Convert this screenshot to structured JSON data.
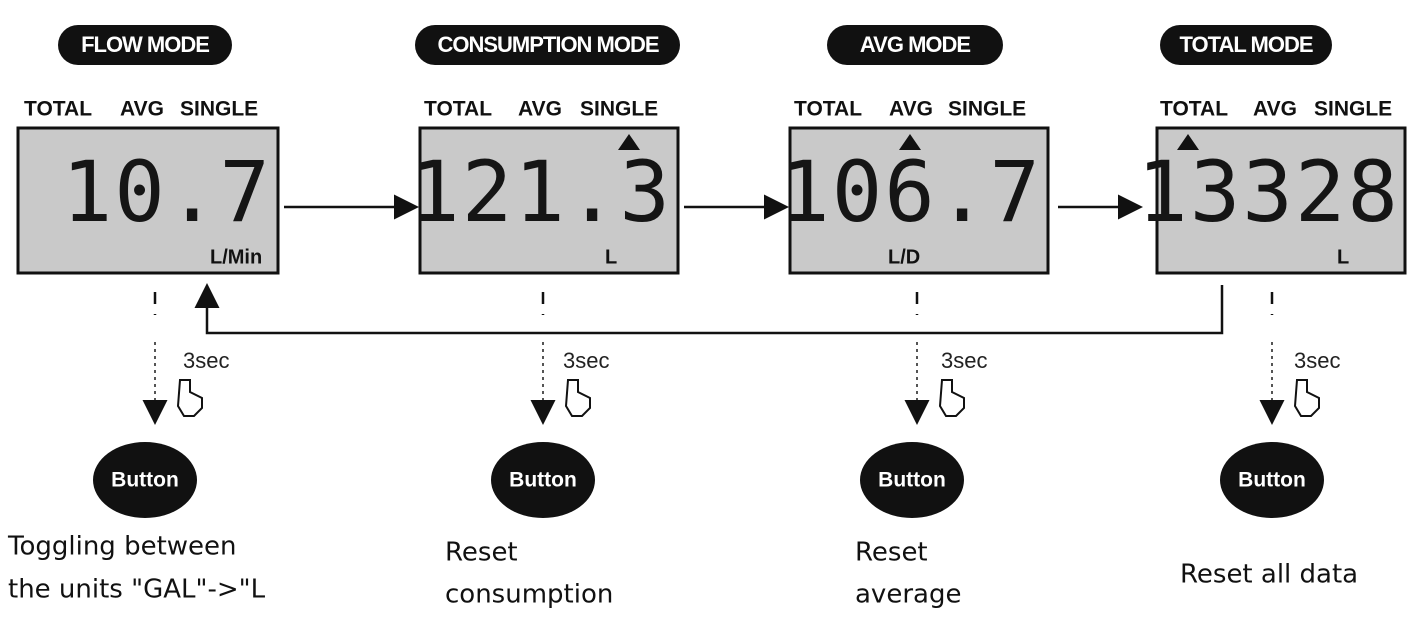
{
  "modes": [
    {
      "title": "FLOW MODE",
      "indicators": [
        "TOTAL",
        "AVG",
        "SINGLE"
      ],
      "display": "10.7",
      "unit": "L/Min",
      "hold": "3sec",
      "button": "Button",
      "action": [
        "Toggling between",
        "the units \"GAL\"->\"L"
      ]
    },
    {
      "title": "CONSUMPTION MODE",
      "indicators": [
        "TOTAL",
        "AVG",
        "SINGLE"
      ],
      "display": "121.3",
      "unit": "L",
      "hold": "3sec",
      "button": "Button",
      "action": [
        "Reset",
        "consumption"
      ]
    },
    {
      "title": "AVG MODE",
      "indicators": [
        "TOTAL",
        "AVG",
        "SINGLE"
      ],
      "display": "106.7",
      "unit": "L/D",
      "hold": "3sec",
      "button": "Button",
      "action": [
        "Reset",
        "average"
      ]
    },
    {
      "title": "TOTAL MODE",
      "indicators": [
        "TOTAL",
        "AVG",
        "SINGLE"
      ],
      "display": "13328",
      "unit": "L",
      "hold": "3sec",
      "button": "Button",
      "action": [
        "Reset all data"
      ]
    }
  ]
}
